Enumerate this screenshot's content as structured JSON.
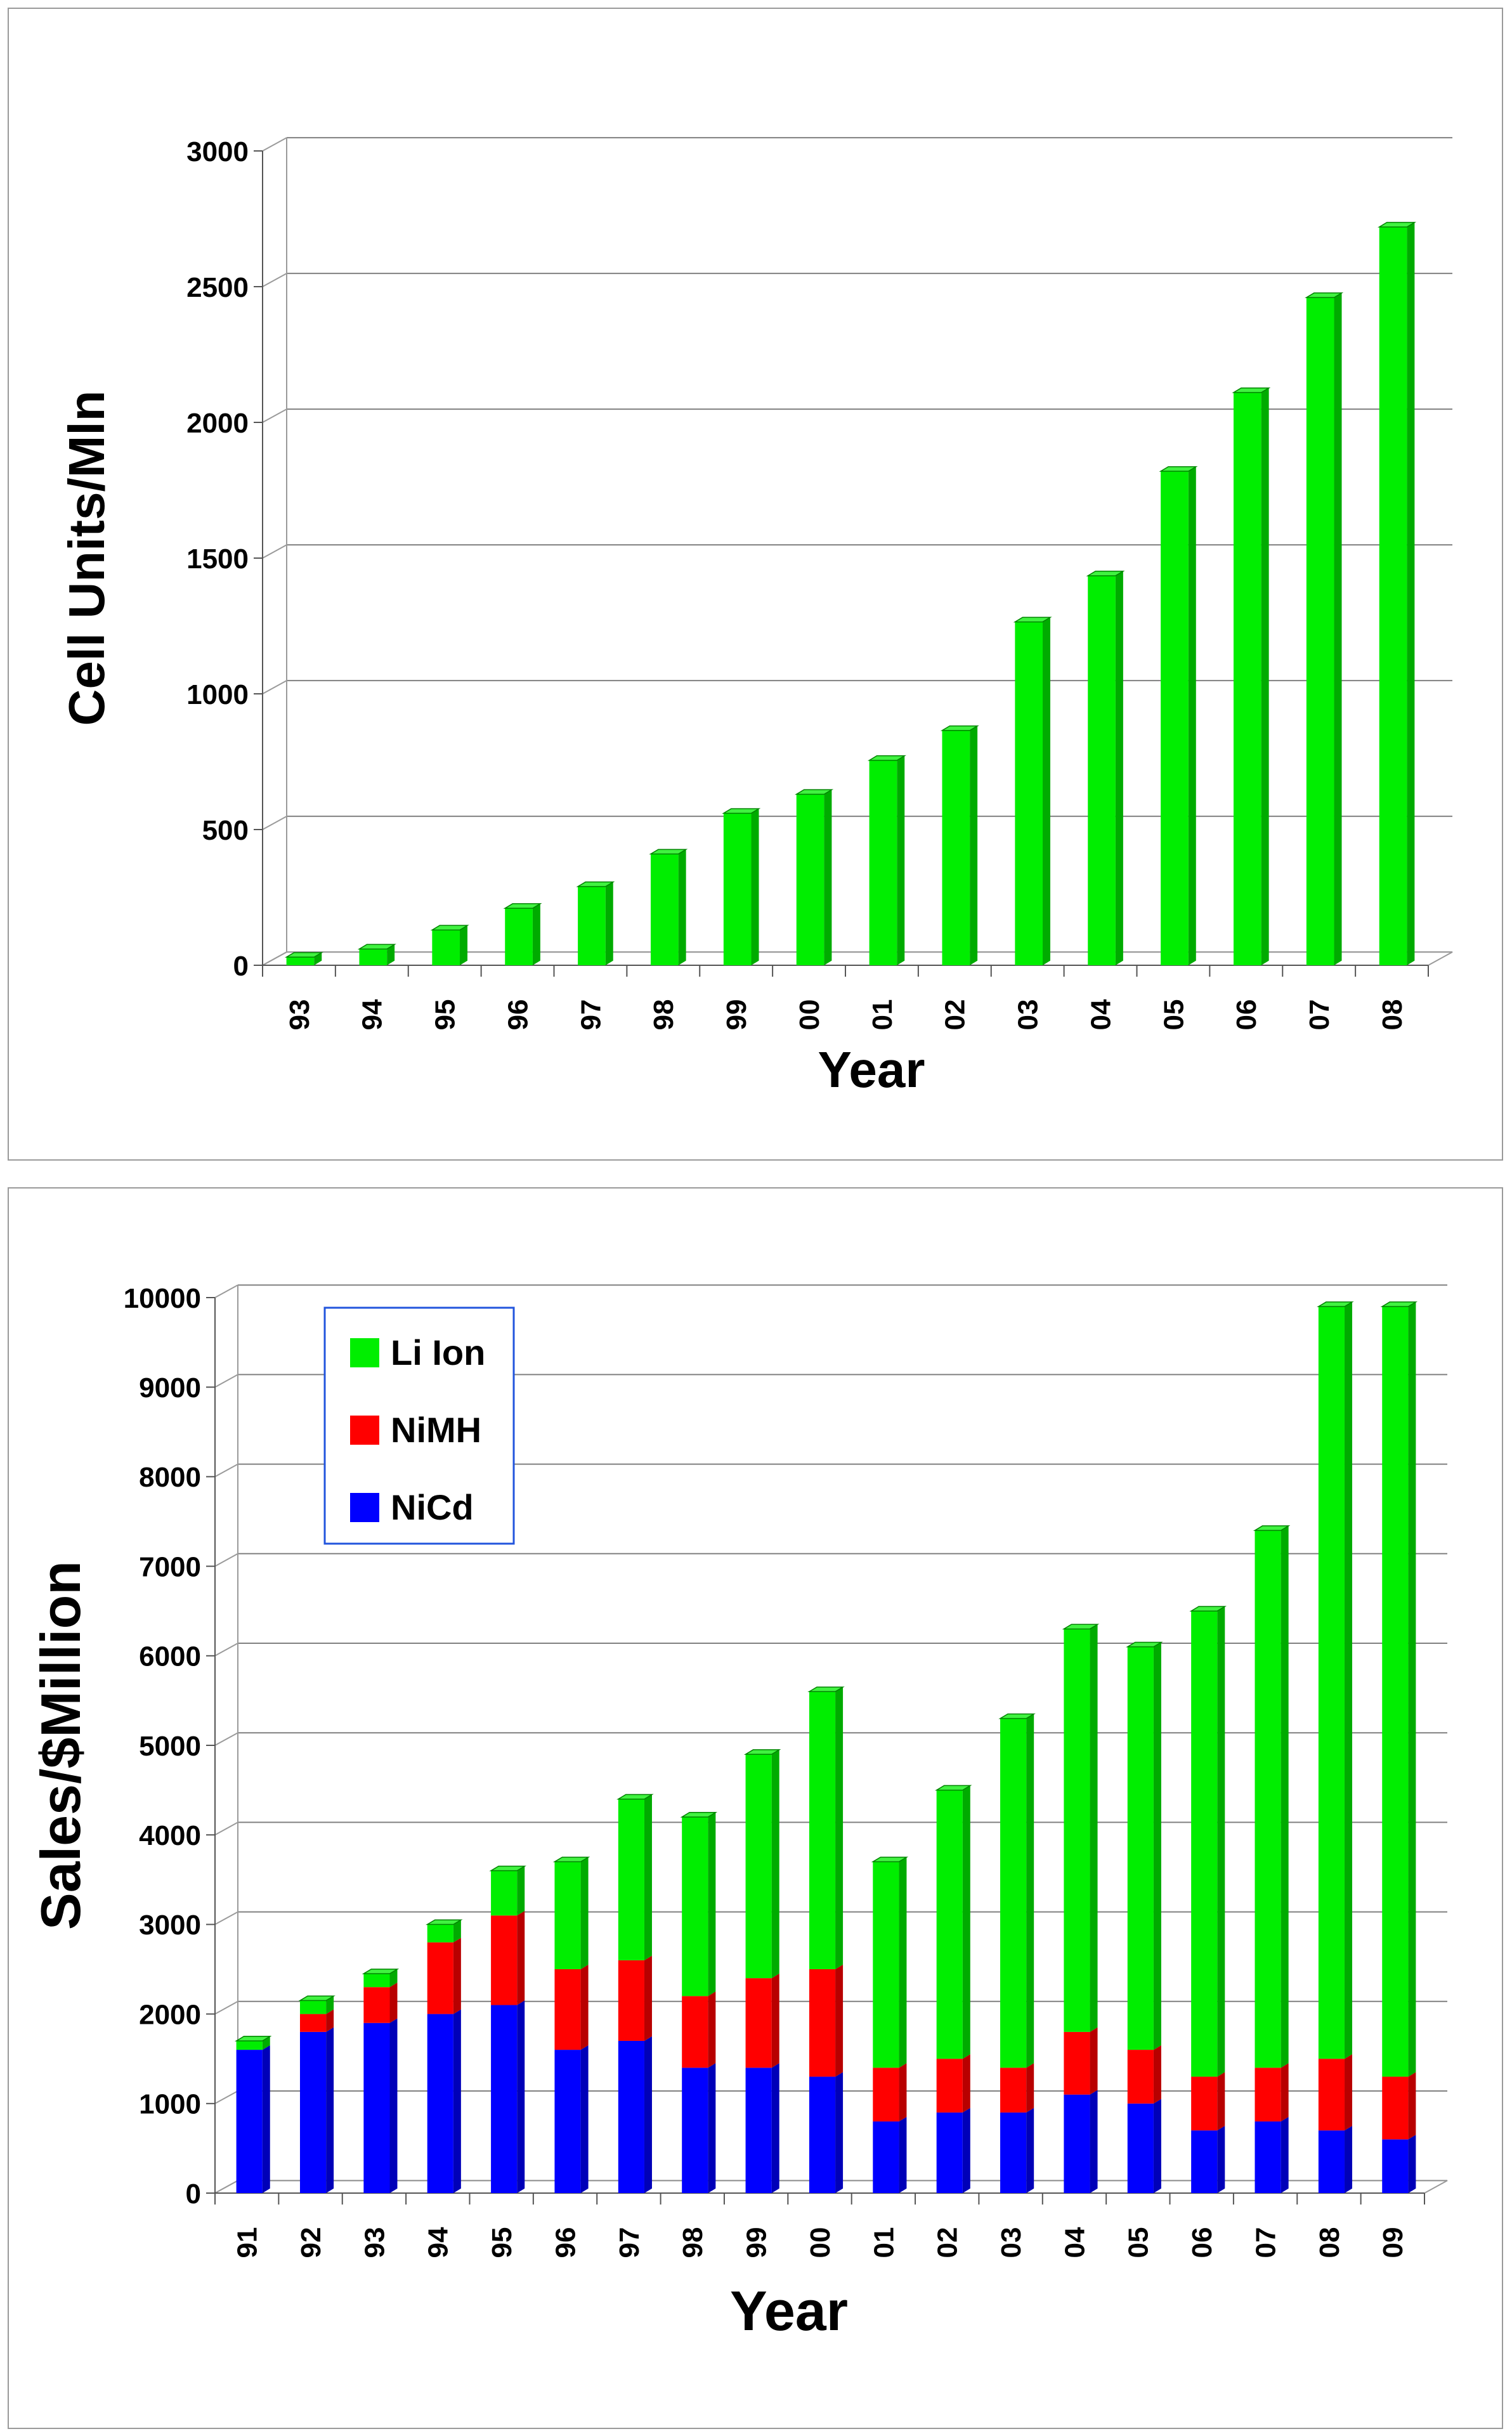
{
  "chart_data": [
    {
      "type": "bar",
      "title": "",
      "xlabel": "Year",
      "ylabel": "Cell Units/Mln",
      "ylim": [
        0,
        3000
      ],
      "yticks": [
        0,
        500,
        1000,
        1500,
        2000,
        2500,
        3000
      ],
      "grid": true,
      "categories": [
        "93",
        "94",
        "95",
        "96",
        "97",
        "98",
        "99",
        "00",
        "01",
        "02",
        "03",
        "04",
        "05",
        "06",
        "07",
        "08"
      ],
      "series": [
        {
          "name": "Cell Units",
          "color": "#00ee00",
          "values": [
            30,
            60,
            130,
            210,
            290,
            410,
            560,
            630,
            755,
            865,
            1265,
            1435,
            1820,
            2110,
            2460,
            2720
          ]
        }
      ]
    },
    {
      "type": "bar",
      "stacked": true,
      "title": "",
      "xlabel": "Year",
      "ylabel": "Sales/$Million",
      "ylim": [
        0,
        10000
      ],
      "yticks": [
        0,
        1000,
        2000,
        3000,
        4000,
        5000,
        6000,
        7000,
        8000,
        9000,
        10000
      ],
      "grid": true,
      "legend": "top-left",
      "categories": [
        "91",
        "92",
        "93",
        "94",
        "95",
        "96",
        "97",
        "98",
        "99",
        "00",
        "01",
        "02",
        "03",
        "04",
        "05",
        "06",
        "07",
        "08",
        "09"
      ],
      "series": [
        {
          "name": "NiCd",
          "color": "#0000ff",
          "values": [
            1600,
            1800,
            1900,
            2000,
            2100,
            1600,
            1700,
            1400,
            1400,
            1300,
            800,
            900,
            900,
            1100,
            1000,
            700,
            800,
            700,
            600
          ]
        },
        {
          "name": "NiMH",
          "color": "#ff0000",
          "values": [
            0,
            200,
            400,
            800,
            1000,
            900,
            900,
            800,
            1000,
            1200,
            600,
            600,
            500,
            700,
            600,
            600,
            600,
            800,
            700
          ]
        },
        {
          "name": "Li Ion",
          "color": "#00ee00",
          "values": [
            100,
            150,
            150,
            200,
            500,
            1200,
            1800,
            2000,
            2500,
            3100,
            2300,
            3000,
            3900,
            4500,
            4500,
            5200,
            6000,
            8400,
            8600
          ]
        }
      ],
      "legend_entries": [
        "Li Ion",
        "NiMH",
        "NiCd"
      ]
    }
  ]
}
